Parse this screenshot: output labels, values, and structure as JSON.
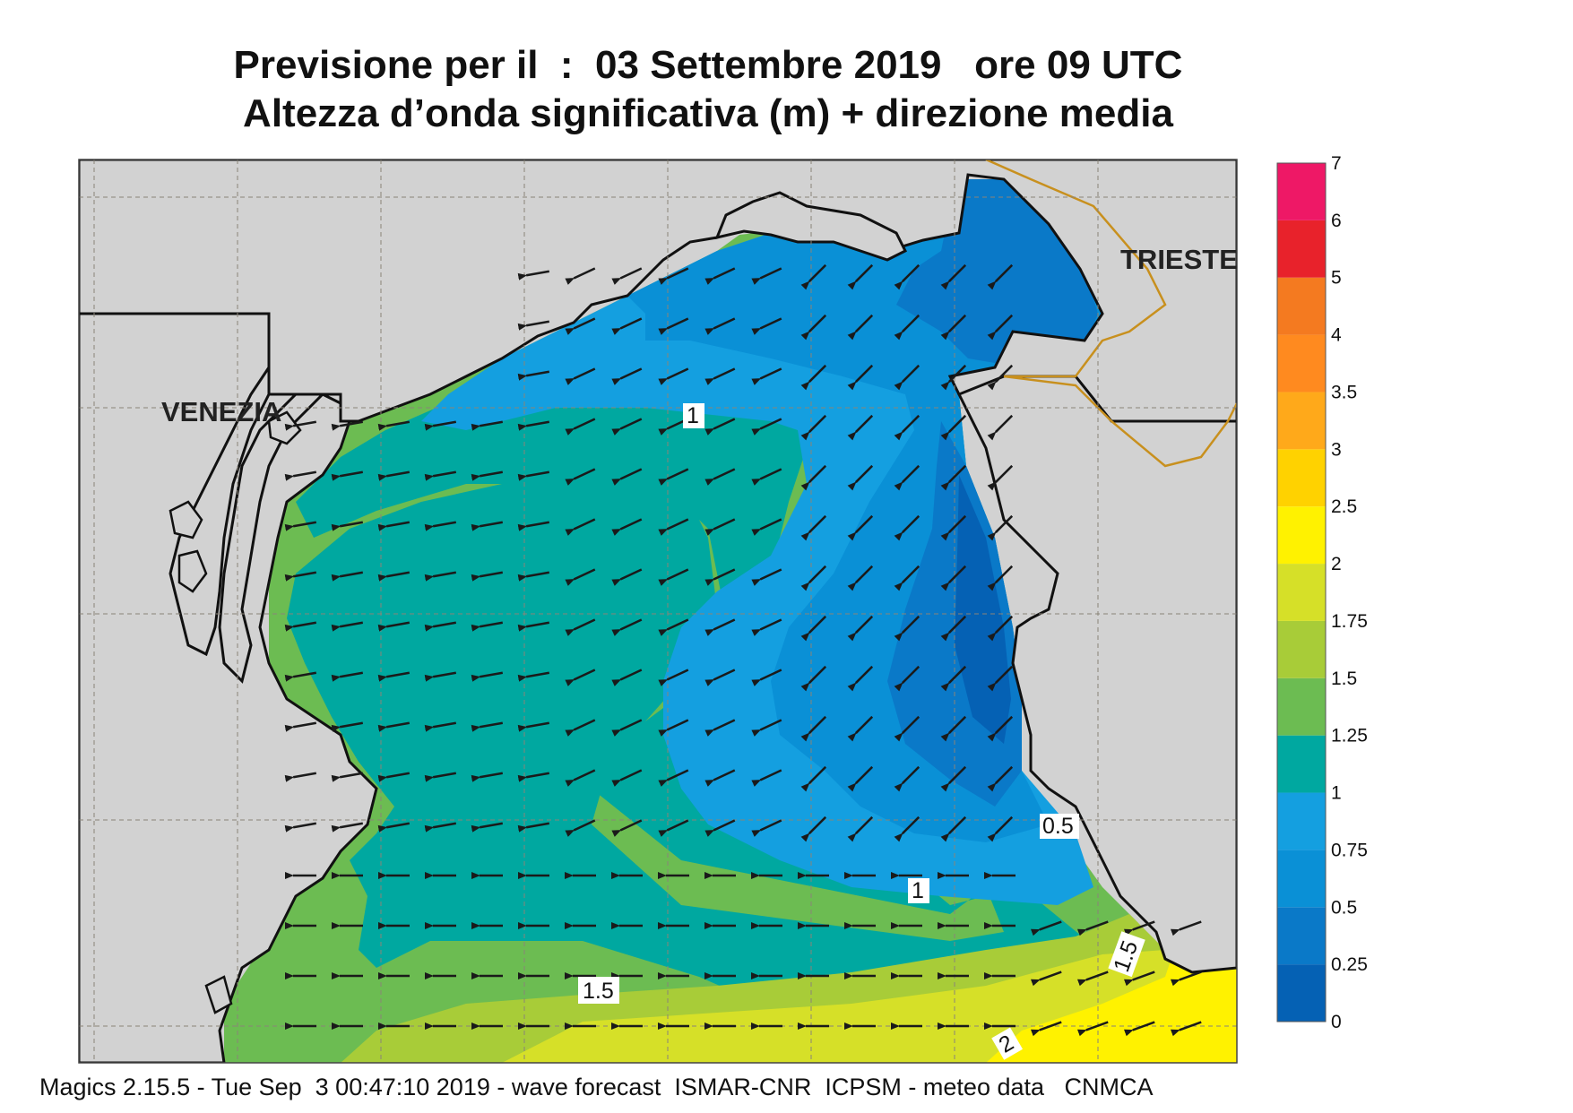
{
  "header": {
    "title_line1": "Previsione per il  :  03 Settembre 2019   ore 09 UTC",
    "title_line2": "Altezza d’onda significativa (m) + direzione media"
  },
  "map": {
    "cities": [
      "VENEZIA",
      "TRIESTE"
    ],
    "contour_labels": [
      "1",
      "0.5",
      "1",
      "1.5",
      "1.5",
      "2"
    ],
    "land_color": "#d2d2d2",
    "border_color": "#c8901e",
    "wave_direction": "toward south-west / west"
  },
  "legend": {
    "levels": [
      "0",
      "0.25",
      "0.5",
      "0.75",
      "1",
      "1.25",
      "1.5",
      "1.75",
      "2",
      "2.5",
      "3",
      "3.5",
      "4",
      "5",
      "6",
      "7"
    ],
    "colors": [
      "#0561b4",
      "#0a79c8",
      "#0a90d6",
      "#149fe0",
      "#00a8a0",
      "#6cbc52",
      "#a8cc38",
      "#d6e028",
      "#fff200",
      "#ffd200",
      "#ffa91a",
      "#ff8a1f",
      "#f47a20",
      "#e8222b",
      "#ee1866"
    ]
  },
  "footer": {
    "text": "Magics 2.15.5 - Tue Sep  3 00:47:10 2019 - wave forecast  ISMAR-CNR  ICPSM - meteo data   CNMCA"
  }
}
